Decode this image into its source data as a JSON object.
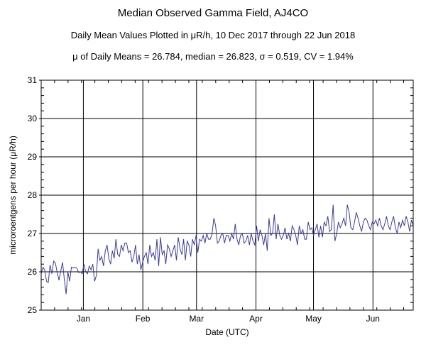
{
  "header": {
    "title": "Median Observed Gamma Field, AJ4CO",
    "subtitle": "Daily Mean Values Plotted in μR/h, 10 Dec 2017 through 22 Jun 2018",
    "stats": "μ of Daily Means = 26.784,   median = 26.823,   σ = 0.519,   CV = 1.94%"
  },
  "chart_data": {
    "type": "line",
    "xlabel": "Date (UTC)",
    "ylabel": "microroentgens per hour (μR/h)",
    "ylim": [
      25,
      31
    ],
    "yticks": [
      25,
      26,
      27,
      28,
      29,
      30,
      31
    ],
    "xlim": [
      "2017-12-10",
      "2018-06-22"
    ],
    "month_ticks": [
      {
        "label": "Jan",
        "date": "2018-01-01"
      },
      {
        "label": "Feb",
        "date": "2018-02-01"
      },
      {
        "label": "Mar",
        "date": "2018-03-01"
      },
      {
        "label": "Apr",
        "date": "2018-04-01"
      },
      {
        "label": "May",
        "date": "2018-05-01"
      },
      {
        "label": "Jun",
        "date": "2018-06-01"
      }
    ],
    "grid": true,
    "line_color": "#3b3b9a",
    "series": [
      {
        "start_date": "2017-12-10",
        "values": [
          25.95,
          26.12,
          26.05,
          25.75,
          25.72,
          26.18,
          25.95,
          26.28,
          26.22,
          25.98,
          25.78,
          26.02,
          26.25,
          25.8,
          25.42,
          26.0,
          25.75,
          26.12,
          26.1,
          26.12,
          26.1,
          25.98,
          26.0,
          25.95,
          26.2,
          26.0,
          25.95,
          26.15,
          26.05,
          26.2,
          25.75,
          25.9,
          26.6,
          26.3,
          26.4,
          26.15,
          26.55,
          26.7,
          26.35,
          26.2,
          26.55,
          26.35,
          26.85,
          26.45,
          26.4,
          26.7,
          26.55,
          26.75,
          26.75,
          26.5,
          26.55,
          26.25,
          26.4,
          26.7,
          26.2,
          26.45,
          26.05,
          26.25,
          26.4,
          26.5,
          26.2,
          26.7,
          26.4,
          26.5,
          26.3,
          26.85,
          26.15,
          26.9,
          26.45,
          26.55,
          26.2,
          26.7,
          26.6,
          26.4,
          26.55,
          26.7,
          26.3,
          26.9,
          26.6,
          26.45,
          26.85,
          26.3,
          26.8,
          26.7,
          26.4,
          26.85,
          26.7,
          26.95,
          26.5,
          26.85,
          26.8,
          26.95,
          26.75,
          27.0,
          26.85,
          26.85,
          27.0,
          27.4,
          27.2,
          26.75,
          26.8,
          26.95,
          27.0,
          26.75,
          26.95,
          26.95,
          26.8,
          27.0,
          26.85,
          27.25,
          26.85,
          26.7,
          26.95,
          27.0,
          26.75,
          26.8,
          26.95,
          26.7,
          27.0,
          26.8,
          26.7,
          27.2,
          26.8,
          27.1,
          26.95,
          26.7,
          27.0,
          26.55,
          27.4,
          26.95,
          27.0,
          27.5,
          26.85,
          27.25,
          26.95,
          26.85,
          26.95,
          27.15,
          26.85,
          27.0,
          26.8,
          27.2,
          27.1,
          26.95,
          26.7,
          27.2,
          27.0,
          27.1,
          26.85,
          26.85,
          27.3,
          27.1,
          27.15,
          26.95,
          27.1,
          27.25,
          26.9,
          27.2,
          26.9,
          27.3,
          27.2,
          27.45,
          27.05,
          27.1,
          27.75,
          26.8,
          27.0,
          27.3,
          27.15,
          27.25,
          27.4,
          27.2,
          27.75,
          27.55,
          27.15,
          27.1,
          27.3,
          27.55,
          27.4,
          27.2,
          27.05,
          27.3,
          27.4,
          27.35,
          27.2,
          27.1,
          27.3,
          27.25,
          27.35,
          27.2,
          27.4,
          27.2,
          27.1,
          27.25,
          27.45,
          27.2,
          27.1,
          27.3,
          27.45,
          27.15,
          27.0,
          27.3,
          27.15,
          27.35,
          27.2,
          27.45,
          27.3,
          27.05,
          27.35,
          27.2
        ]
      }
    ]
  }
}
